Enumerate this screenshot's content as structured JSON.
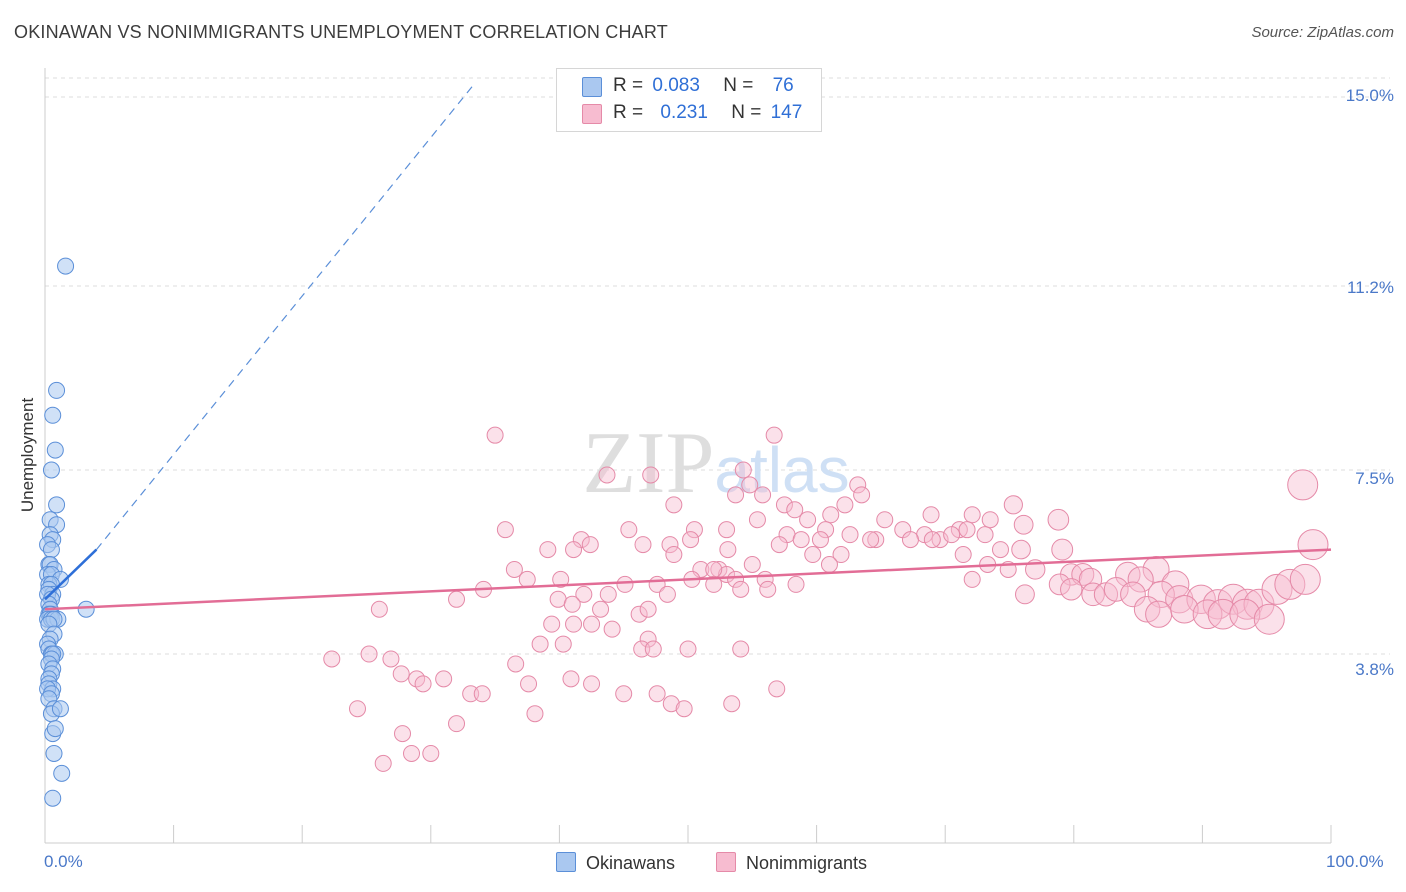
{
  "title": "OKINAWAN VS NONIMMIGRANTS UNEMPLOYMENT CORRELATION CHART",
  "source": "Source: ZipAtlas.com",
  "watermark": "ZIPatlas",
  "colors": {
    "blue_fill": "#aac8f0",
    "blue_stroke": "#5b8fd8",
    "blue_line": "#2e6fd8",
    "pink_fill": "#f7bcd0",
    "pink_stroke": "#e58aa8",
    "pink_line": "#e26d96",
    "tick_label": "#4a78c8",
    "grid": "#dddddd"
  },
  "legend": {
    "rows": [
      {
        "r_label": "R =",
        "r_value": "0.083",
        "n_label": "N =",
        "n_value": "76"
      },
      {
        "r_label": "R =",
        "r_value": "0.231",
        "n_label": "N =",
        "n_value": "147"
      }
    ]
  },
  "bottom_legend": [
    "Okinawans",
    "Nonimmigrants"
  ],
  "chart_data": {
    "type": "scatter",
    "title": "OKINAWAN VS NONIMMIGRANTS UNEMPLOYMENT CORRELATION CHART",
    "xlabel": "",
    "ylabel": "Unemployment",
    "xlim": [
      0,
      100
    ],
    "ylim": [
      0,
      15.0
    ],
    "x_tick_labels": [
      "0.0%",
      "100.0%"
    ],
    "y_ticks": [
      3.8,
      7.5,
      11.2,
      15.0
    ],
    "y_tick_labels": [
      "3.8%",
      "7.5%",
      "11.2%",
      "15.0%"
    ],
    "grid": true,
    "legend_position": "top-center",
    "series": [
      {
        "name": "Okinawans",
        "trend": {
          "x": [
            0.0,
            4.0
          ],
          "y": [
            4.9,
            5.9
          ]
        },
        "trend_extension": {
          "x": [
            4.0,
            33.5
          ],
          "y": [
            5.9,
            15.3
          ]
        },
        "points": [
          [
            1.6,
            11.6
          ],
          [
            0.9,
            9.1
          ],
          [
            0.6,
            8.6
          ],
          [
            0.8,
            7.9
          ],
          [
            0.5,
            7.5
          ],
          [
            0.9,
            6.8
          ],
          [
            0.4,
            6.5
          ],
          [
            0.9,
            6.4
          ],
          [
            0.4,
            6.2
          ],
          [
            0.6,
            6.1
          ],
          [
            0.2,
            6.0
          ],
          [
            0.5,
            5.9
          ],
          [
            0.3,
            5.6
          ],
          [
            0.4,
            5.6
          ],
          [
            0.7,
            5.5
          ],
          [
            0.2,
            5.4
          ],
          [
            0.5,
            5.4
          ],
          [
            1.2,
            5.3
          ],
          [
            0.3,
            5.2
          ],
          [
            0.5,
            5.2
          ],
          [
            0.3,
            5.1
          ],
          [
            0.6,
            5.0
          ],
          [
            0.2,
            5.0
          ],
          [
            0.5,
            4.9
          ],
          [
            0.3,
            4.8
          ],
          [
            0.4,
            4.7
          ],
          [
            3.2,
            4.7
          ],
          [
            0.3,
            4.6
          ],
          [
            0.5,
            4.6
          ],
          [
            0.4,
            4.6
          ],
          [
            0.2,
            4.5
          ],
          [
            0.5,
            4.5
          ],
          [
            1.0,
            4.5
          ],
          [
            0.7,
            4.5
          ],
          [
            0.3,
            4.4
          ],
          [
            0.7,
            4.2
          ],
          [
            0.4,
            4.1
          ],
          [
            0.2,
            4.0
          ],
          [
            0.3,
            3.9
          ],
          [
            0.5,
            3.8
          ],
          [
            0.8,
            3.8
          ],
          [
            0.6,
            3.8
          ],
          [
            0.5,
            3.7
          ],
          [
            0.3,
            3.6
          ],
          [
            0.6,
            3.5
          ],
          [
            0.5,
            3.4
          ],
          [
            0.3,
            3.3
          ],
          [
            0.3,
            3.2
          ],
          [
            0.6,
            3.1
          ],
          [
            0.2,
            3.1
          ],
          [
            0.5,
            3.0
          ],
          [
            0.3,
            2.9
          ],
          [
            0.7,
            2.7
          ],
          [
            0.5,
            2.6
          ],
          [
            1.2,
            2.7
          ],
          [
            0.6,
            2.2
          ],
          [
            0.8,
            2.3
          ],
          [
            0.7,
            1.8
          ],
          [
            1.3,
            1.4
          ],
          [
            0.6,
            0.9
          ]
        ]
      },
      {
        "name": "Nonimmigrants",
        "trend": {
          "x": [
            0.0,
            100.0
          ],
          "y": [
            4.7,
            5.9
          ]
        },
        "points": [
          [
            35.0,
            8.2
          ],
          [
            56.7,
            8.2
          ],
          [
            43.7,
            7.4
          ],
          [
            47.1,
            7.4
          ],
          [
            54.3,
            7.5
          ],
          [
            54.8,
            7.2
          ],
          [
            63.2,
            7.2
          ],
          [
            53.7,
            7.0
          ],
          [
            55.8,
            7.0
          ],
          [
            63.5,
            7.0
          ],
          [
            97.8,
            7.2
          ],
          [
            48.9,
            6.8
          ],
          [
            57.5,
            6.8
          ],
          [
            58.3,
            6.7
          ],
          [
            62.2,
            6.8
          ],
          [
            61.1,
            6.6
          ],
          [
            75.3,
            6.8
          ],
          [
            59.3,
            6.5
          ],
          [
            55.4,
            6.5
          ],
          [
            65.3,
            6.5
          ],
          [
            68.9,
            6.6
          ],
          [
            72.1,
            6.6
          ],
          [
            73.5,
            6.5
          ],
          [
            53.0,
            6.3
          ],
          [
            57.7,
            6.2
          ],
          [
            60.7,
            6.3
          ],
          [
            66.7,
            6.3
          ],
          [
            71.1,
            6.3
          ],
          [
            73.1,
            6.2
          ],
          [
            76.1,
            6.4
          ],
          [
            35.8,
            6.3
          ],
          [
            45.4,
            6.3
          ],
          [
            41.7,
            6.1
          ],
          [
            50.5,
            6.3
          ],
          [
            62.6,
            6.2
          ],
          [
            64.6,
            6.1
          ],
          [
            68.4,
            6.2
          ],
          [
            69.6,
            6.1
          ],
          [
            70.5,
            6.2
          ],
          [
            71.7,
            6.3
          ],
          [
            78.8,
            6.5
          ],
          [
            58.8,
            6.1
          ],
          [
            60.3,
            6.1
          ],
          [
            64.2,
            6.1
          ],
          [
            67.3,
            6.1
          ],
          [
            57.1,
            6.0
          ],
          [
            42.4,
            6.0
          ],
          [
            46.5,
            6.0
          ],
          [
            48.6,
            6.0
          ],
          [
            50.2,
            6.1
          ],
          [
            69.0,
            6.1
          ],
          [
            74.3,
            5.9
          ],
          [
            75.9,
            5.9
          ],
          [
            39.1,
            5.9
          ],
          [
            41.1,
            5.9
          ],
          [
            48.9,
            5.8
          ],
          [
            53.1,
            5.9
          ],
          [
            59.7,
            5.8
          ],
          [
            61.9,
            5.8
          ],
          [
            71.4,
            5.8
          ],
          [
            79.1,
            5.9
          ],
          [
            36.5,
            5.5
          ],
          [
            51.0,
            5.5
          ],
          [
            52.4,
            5.5
          ],
          [
            53.0,
            5.4
          ],
          [
            55.0,
            5.6
          ],
          [
            61.0,
            5.6
          ],
          [
            73.3,
            5.6
          ],
          [
            74.9,
            5.5
          ],
          [
            77.0,
            5.5
          ],
          [
            79.8,
            5.4
          ],
          [
            86.4,
            5.5
          ],
          [
            37.5,
            5.3
          ],
          [
            40.1,
            5.3
          ],
          [
            45.1,
            5.2
          ],
          [
            50.3,
            5.3
          ],
          [
            52.0,
            5.5
          ],
          [
            53.7,
            5.3
          ],
          [
            56.0,
            5.3
          ],
          [
            58.4,
            5.2
          ],
          [
            72.1,
            5.3
          ],
          [
            78.9,
            5.2
          ],
          [
            80.7,
            5.4
          ],
          [
            81.3,
            5.3
          ],
          [
            84.2,
            5.4
          ],
          [
            85.2,
            5.3
          ],
          [
            87.9,
            5.2
          ],
          [
            34.1,
            5.1
          ],
          [
            41.9,
            5.0
          ],
          [
            43.8,
            5.0
          ],
          [
            47.6,
            5.2
          ],
          [
            48.4,
            5.0
          ],
          [
            52.0,
            5.2
          ],
          [
            54.1,
            5.1
          ],
          [
            56.2,
            5.1
          ],
          [
            76.2,
            5.0
          ],
          [
            79.8,
            5.1
          ],
          [
            81.5,
            5.0
          ],
          [
            82.5,
            5.0
          ],
          [
            83.3,
            5.1
          ],
          [
            84.6,
            5.0
          ],
          [
            86.8,
            5.0
          ],
          [
            88.2,
            4.9
          ],
          [
            89.9,
            4.9
          ],
          [
            91.2,
            4.8
          ],
          [
            92.4,
            4.9
          ],
          [
            93.5,
            4.8
          ],
          [
            94.4,
            4.8
          ],
          [
            95.8,
            5.1
          ],
          [
            96.8,
            5.2
          ],
          [
            98.0,
            5.3
          ],
          [
            98.6,
            6.0
          ],
          [
            32.0,
            4.9
          ],
          [
            39.9,
            4.9
          ],
          [
            41.0,
            4.8
          ],
          [
            43.2,
            4.7
          ],
          [
            46.2,
            4.6
          ],
          [
            46.9,
            4.7
          ],
          [
            85.7,
            4.7
          ],
          [
            86.6,
            4.6
          ],
          [
            88.6,
            4.7
          ],
          [
            90.4,
            4.6
          ],
          [
            91.6,
            4.6
          ],
          [
            93.3,
            4.6
          ],
          [
            95.2,
            4.5
          ],
          [
            26.0,
            4.7
          ],
          [
            39.4,
            4.4
          ],
          [
            41.1,
            4.4
          ],
          [
            42.5,
            4.4
          ],
          [
            44.1,
            4.3
          ],
          [
            46.9,
            4.1
          ],
          [
            38.5,
            4.0
          ],
          [
            40.3,
            4.0
          ],
          [
            46.4,
            3.9
          ],
          [
            47.3,
            3.9
          ],
          [
            50.0,
            3.9
          ],
          [
            54.1,
            3.9
          ],
          [
            40.9,
            3.3
          ],
          [
            42.5,
            3.2
          ],
          [
            45.0,
            3.0
          ],
          [
            47.6,
            3.0
          ],
          [
            48.7,
            2.8
          ],
          [
            49.7,
            2.7
          ],
          [
            53.4,
            2.8
          ],
          [
            56.9,
            3.1
          ],
          [
            25.2,
            3.8
          ],
          [
            26.9,
            3.7
          ],
          [
            27.7,
            3.4
          ],
          [
            28.9,
            3.3
          ],
          [
            29.4,
            3.2
          ],
          [
            31.0,
            3.3
          ],
          [
            33.1,
            3.0
          ],
          [
            34.0,
            3.0
          ],
          [
            36.6,
            3.6
          ],
          [
            37.6,
            3.2
          ],
          [
            38.1,
            2.6
          ],
          [
            27.8,
            2.2
          ],
          [
            28.5,
            1.8
          ],
          [
            26.3,
            1.6
          ],
          [
            30.0,
            1.8
          ],
          [
            32.0,
            2.4
          ],
          [
            22.3,
            3.7
          ],
          [
            24.3,
            2.7
          ]
        ]
      }
    ]
  }
}
